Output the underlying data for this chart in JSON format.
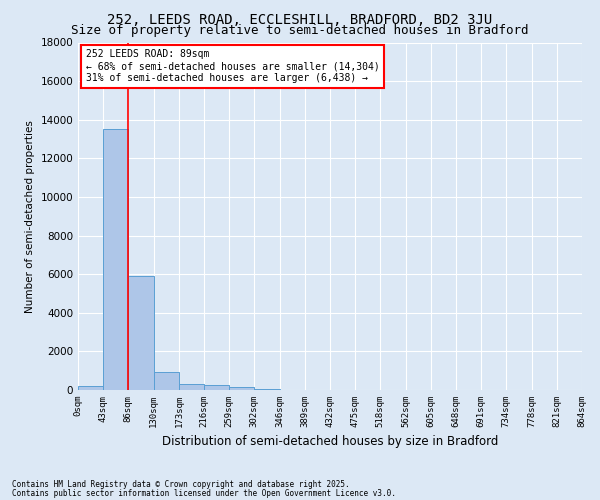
{
  "title1": "252, LEEDS ROAD, ECCLESHILL, BRADFORD, BD2 3JU",
  "title2": "Size of property relative to semi-detached houses in Bradford",
  "xlabel": "Distribution of semi-detached houses by size in Bradford",
  "ylabel": "Number of semi-detached properties",
  "footer1": "Contains HM Land Registry data © Crown copyright and database right 2025.",
  "footer2": "Contains public sector information licensed under the Open Government Licence v3.0.",
  "bar_edges": [
    0,
    43,
    86,
    130,
    173,
    216,
    259,
    302,
    346,
    389,
    432,
    475,
    518,
    562,
    605,
    648,
    691,
    734,
    778,
    821,
    864
  ],
  "bar_labels": [
    "0sqm",
    "43sqm",
    "86sqm",
    "130sqm",
    "173sqm",
    "216sqm",
    "259sqm",
    "302sqm",
    "346sqm",
    "389sqm",
    "432sqm",
    "475sqm",
    "518sqm",
    "562sqm",
    "605sqm",
    "648sqm",
    "691sqm",
    "734sqm",
    "778sqm",
    "821sqm",
    "864sqm"
  ],
  "bar_values": [
    200,
    13500,
    5900,
    950,
    310,
    270,
    130,
    50,
    0,
    0,
    0,
    0,
    0,
    0,
    0,
    0,
    0,
    0,
    0,
    0
  ],
  "bar_color": "#aec6e8",
  "bar_edge_color": "#5a9fd4",
  "vline_x": 86,
  "vline_color": "red",
  "annotation_title": "252 LEEDS ROAD: 89sqm",
  "annotation_line1": "← 68% of semi-detached houses are smaller (14,304)",
  "annotation_line2": "31% of semi-detached houses are larger (6,438) →",
  "annotation_box_color": "white",
  "annotation_box_edge": "red",
  "ylim": [
    0,
    18000
  ],
  "yticks": [
    0,
    2000,
    4000,
    6000,
    8000,
    10000,
    12000,
    14000,
    16000,
    18000
  ],
  "bg_color": "#dce8f5",
  "title_fontsize": 10,
  "subtitle_fontsize": 9,
  "figsize": [
    6.0,
    5.0
  ],
  "dpi": 100
}
